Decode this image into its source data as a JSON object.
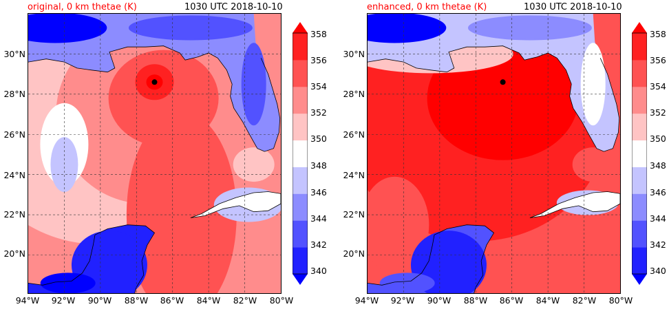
{
  "panels": [
    {
      "title_left": "original, 0 km thetae (K)",
      "title_right": "1030 UTC 2018-10-10",
      "enhanced": false
    },
    {
      "title_left": "enhanced, 0 km thetae (K)",
      "title_right": "1030 UTC 2018-10-10",
      "enhanced": true
    }
  ],
  "lat_labels": [
    "30°N",
    "28°N",
    "26°N",
    "24°N",
    "22°N",
    "20°N"
  ],
  "lon_labels": [
    "94°W",
    "92°W",
    "90°W",
    "88°W",
    "86°W",
    "84°W",
    "82°W",
    "80°W"
  ],
  "colorbar": {
    "ticks": [
      "358",
      "356",
      "354",
      "352",
      "350",
      "348",
      "346",
      "344",
      "342",
      "340"
    ],
    "colors": [
      "#0000ff",
      "#2121ff",
      "#5252ff",
      "#8c8cff",
      "#c4c4ff",
      "#ffffff",
      "#ffc4c4",
      "#ff8c8c",
      "#ff5252",
      "#ff2121",
      "#ff0000"
    ]
  },
  "colors": {
    "title_accent": "#ff0000",
    "storm_center": "#000000"
  }
}
